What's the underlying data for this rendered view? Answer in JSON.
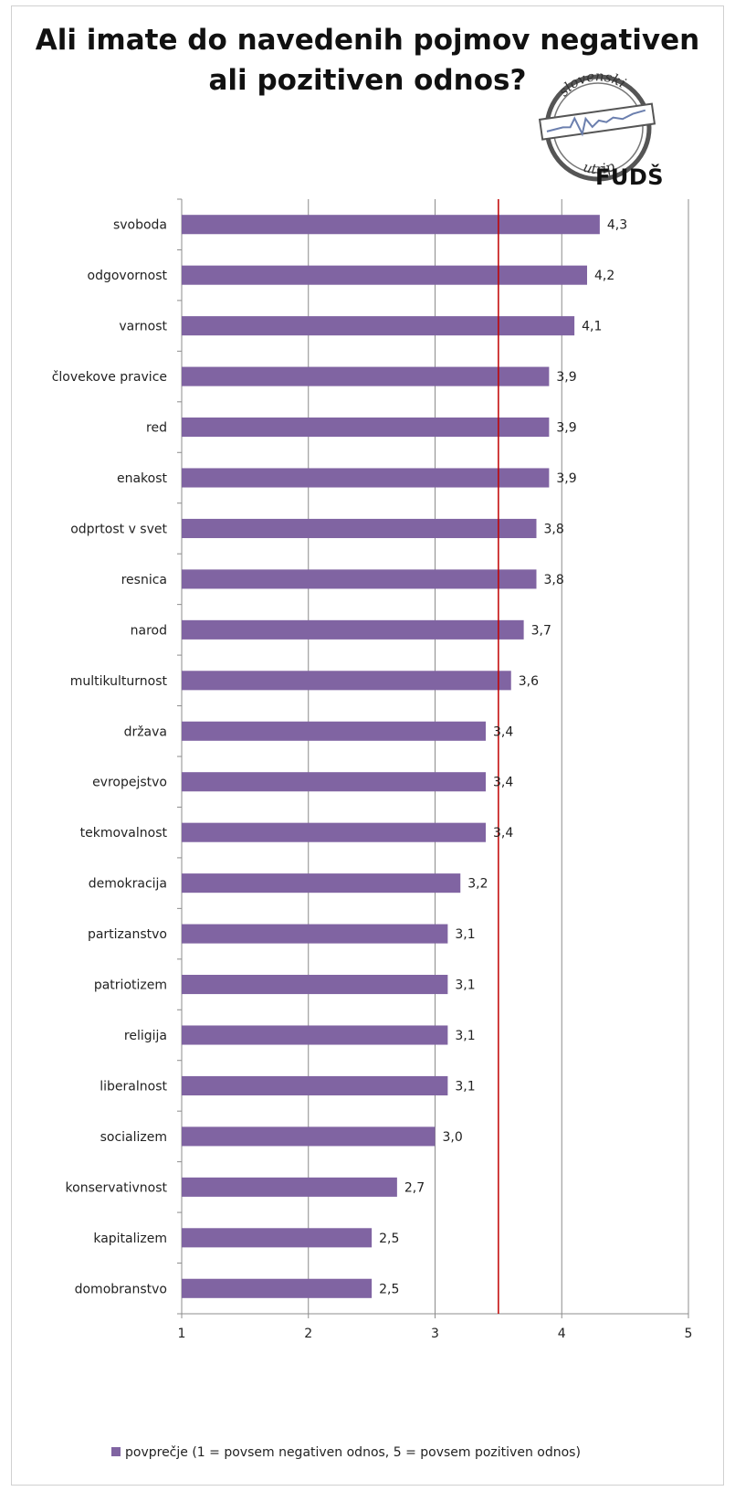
{
  "chart_data": {
    "type": "bar",
    "orientation": "horizontal",
    "title": "Ali imate do navedenih pojmov negativen ali pozitiven odnos?",
    "title_lines": [
      "Ali imate do navedenih pojmov negativen",
      "ali pozitiven odnos?"
    ],
    "categories": [
      "svoboda",
      "odgovornost",
      "varnost",
      "človekove pravice",
      "red",
      "enakost",
      "odprtost v svet",
      "resnica",
      "narod",
      "multikulturnost",
      "država",
      "evropejstvo",
      "tekmovalnost",
      "demokracija",
      "partizanstvo",
      "patriotizem",
      "religija",
      "liberalnost",
      "socializem",
      "konservativnost",
      "kapitalizem",
      "domobranstvo"
    ],
    "values": [
      4.3,
      4.2,
      4.1,
      3.9,
      3.9,
      3.9,
      3.8,
      3.8,
      3.7,
      3.6,
      3.4,
      3.4,
      3.4,
      3.2,
      3.1,
      3.1,
      3.1,
      3.1,
      3.0,
      2.7,
      2.5,
      2.5
    ],
    "data_labels": [
      "4,3",
      "4,2",
      "4,1",
      "3,9",
      "3,9",
      "3,9",
      "3,8",
      "3,8",
      "3,7",
      "3,6",
      "3,4",
      "3,4",
      "3,4",
      "3,2",
      "3,1",
      "3,1",
      "3,1",
      "3,1",
      "3,0",
      "2,7",
      "2,5",
      "2,5"
    ],
    "xlim": [
      1,
      5
    ],
    "x_ticks": [
      1,
      2,
      3,
      4,
      5
    ],
    "x_tick_labels": [
      "1",
      "2",
      "3",
      "4",
      "5"
    ],
    "grid": "vertical",
    "reference_line": {
      "x": 3.5,
      "color": "#c00000"
    },
    "series": [
      {
        "name": "povprečje (1 = povsem negativen odnos, 5 = povsem pozitiven odnos)",
        "color": "#8064a2"
      }
    ],
    "legend_position": "bottom"
  },
  "logo": {
    "text_top": "slovenski",
    "text_bottom": "utrip",
    "org": "FUDŠ"
  }
}
